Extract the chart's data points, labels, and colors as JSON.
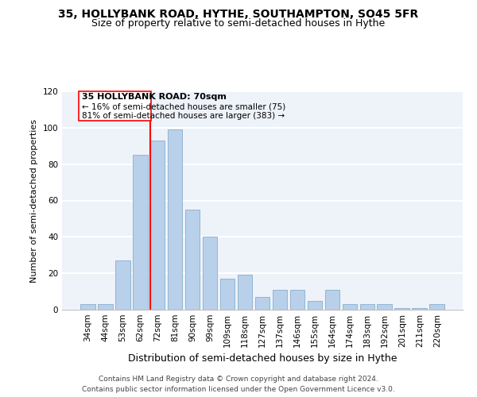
{
  "title": "35, HOLLYBANK ROAD, HYTHE, SOUTHAMPTON, SO45 5FR",
  "subtitle": "Size of property relative to semi-detached houses in Hythe",
  "xlabel": "Distribution of semi-detached houses by size in Hythe",
  "ylabel": "Number of semi-detached properties",
  "categories": [
    "34sqm",
    "44sqm",
    "53sqm",
    "62sqm",
    "72sqm",
    "81sqm",
    "90sqm",
    "99sqm",
    "109sqm",
    "118sqm",
    "127sqm",
    "137sqm",
    "146sqm",
    "155sqm",
    "164sqm",
    "174sqm",
    "183sqm",
    "192sqm",
    "201sqm",
    "211sqm",
    "220sqm"
  ],
  "values": [
    3,
    3,
    27,
    85,
    93,
    99,
    55,
    40,
    17,
    19,
    7,
    11,
    11,
    5,
    11,
    3,
    3,
    3,
    1,
    1,
    3
  ],
  "bar_color": "#b8d0ea",
  "bar_edge_color": "#8aaecc",
  "annotation_lines": [
    "35 HOLLYBANK ROAD: 70sqm",
    "← 16% of semi-detached houses are smaller (75)",
    "81% of semi-detached houses are larger (383) →"
  ],
  "footer": "Contains HM Land Registry data © Crown copyright and database right 2024.\nContains public sector information licensed under the Open Government Licence v3.0.",
  "ylim": [
    0,
    120
  ],
  "yticks": [
    0,
    20,
    40,
    60,
    80,
    100,
    120
  ],
  "background_color": "#eef2f9",
  "grid_color": "#ffffff",
  "title_fontsize": 10,
  "subtitle_fontsize": 9,
  "xlabel_fontsize": 9,
  "ylabel_fontsize": 8,
  "tick_fontsize": 7.5,
  "annotation_fontsize": 8,
  "footer_fontsize": 6.5
}
